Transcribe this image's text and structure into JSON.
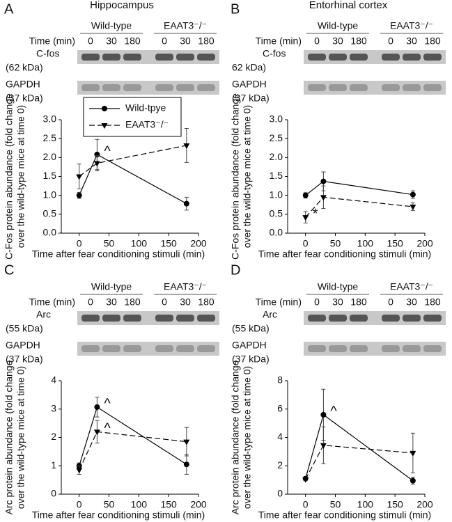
{
  "chart_data": [
    {
      "type": "line",
      "panel": "A",
      "title": "Hippocampus",
      "blot": {
        "time_label": "Time (min)",
        "groups": [
          "Wild-type",
          "EAAT3⁻/⁻"
        ],
        "times": [
          "0",
          "30",
          "180",
          "0",
          "30",
          "180"
        ],
        "rows": [
          {
            "name": "C-fos",
            "size": "(62 kDa)"
          },
          {
            "name": "GAPDH",
            "size": "(37 kDa)"
          }
        ]
      },
      "ylabel": [
        "C-Fos protein abundance (fold change",
        "over the wild-type mice at time 0)"
      ],
      "xlabel": "Time after fear conditioning stimuli (min)",
      "x": [
        0,
        30,
        180
      ],
      "xlim": [
        -30,
        200
      ],
      "xticks": [
        0,
        50,
        100,
        150,
        200
      ],
      "ylim": [
        0,
        3
      ],
      "yticks": [
        {
          "value": 0,
          "label": "0.0"
        },
        {
          "value": 0.5,
          "label": "0.5"
        },
        {
          "value": 1,
          "label": "1.0"
        },
        {
          "value": 1.5,
          "label": "1.5"
        },
        {
          "value": 2,
          "label": "2.0"
        },
        {
          "value": 2.5,
          "label": "2.5"
        },
        {
          "value": 3,
          "label": "3.0"
        }
      ],
      "legend": true,
      "series": [
        {
          "name": "Wild-tpye",
          "color": "#000000",
          "linestyle": "solid",
          "marker": "circle",
          "values": [
            1.0,
            2.08,
            0.78
          ],
          "errors": [
            0.08,
            0.4,
            0.17
          ],
          "annotations": [
            null,
            "^",
            null
          ]
        },
        {
          "name": "EAAT3⁻/⁻",
          "color": "#000000",
          "linestyle": "dashed",
          "marker": "triangle-down",
          "values": [
            1.5,
            1.85,
            2.32
          ],
          "errors": [
            0.33,
            0.2,
            0.45
          ]
        }
      ]
    },
    {
      "type": "line",
      "panel": "B",
      "title": "Entorhinal cortex",
      "blot": {
        "time_label": "Time (min)",
        "groups": [
          "Wild-type",
          "EAAT3⁻/⁻"
        ],
        "times": [
          "0",
          "30",
          "180",
          "0",
          "30",
          "180"
        ],
        "rows": [
          {
            "name": "C-fos",
            "size": "62 kDa)"
          },
          {
            "name": "GAPDH",
            "size": "(37 kDa)"
          }
        ]
      },
      "ylabel": [
        "C-Fos protein abundance (fold change",
        "over the wild-type mice at time 0)"
      ],
      "xlabel": "Time after fear conditioning stimuli (min)",
      "x": [
        0,
        30,
        180
      ],
      "xlim": [
        -30,
        200
      ],
      "xticks": [
        0,
        50,
        100,
        150,
        200
      ],
      "ylim": [
        0,
        3
      ],
      "yticks": [
        {
          "value": 0,
          "label": "0.0"
        },
        {
          "value": 0.5,
          "label": "0.5"
        },
        {
          "value": 1,
          "label": "1.0"
        },
        {
          "value": 1.5,
          "label": "1.5"
        },
        {
          "value": 2,
          "label": "2.0"
        },
        {
          "value": 2.5,
          "label": "2.5"
        },
        {
          "value": 3,
          "label": "3.0"
        }
      ],
      "legend": false,
      "series": [
        {
          "color": "#000000",
          "linestyle": "solid",
          "marker": "circle",
          "values": [
            1.0,
            1.37,
            1.02
          ],
          "errors": [
            0.07,
            0.25,
            0.1
          ]
        },
        {
          "color": "#000000",
          "linestyle": "dashed",
          "marker": "triangle-down",
          "values": [
            0.42,
            0.95,
            0.7
          ],
          "errors": [
            0.15,
            0.3,
            0.1
          ],
          "annotations": [
            "*",
            null,
            null
          ]
        }
      ]
    },
    {
      "type": "line",
      "panel": "C",
      "blot": {
        "time_label": "Time (min)",
        "groups": [
          "Wild-type",
          "EAAT3⁻/⁻"
        ],
        "times": [
          "0",
          "30",
          "180",
          "0",
          "30",
          "180"
        ],
        "rows": [
          {
            "name": "Arc",
            "size": "(55 kDa)"
          },
          {
            "name": "GAPDH",
            "size": "(37 kDa)"
          }
        ]
      },
      "ylabel": [
        "Arc protein abundance (fold change",
        "over the wild-type mice at time 0)"
      ],
      "xlabel": "Time after fear conditioning stimuli (min)",
      "x": [
        0,
        30,
        180
      ],
      "xlim": [
        -30,
        200
      ],
      "xticks": [
        0,
        50,
        100,
        150,
        200
      ],
      "ylim": [
        0,
        4
      ],
      "yticks": [
        0,
        1,
        2,
        3,
        4
      ],
      "legend": false,
      "series": [
        {
          "color": "#000000",
          "linestyle": "solid",
          "marker": "circle",
          "values": [
            1.0,
            3.07,
            1.05
          ],
          "errors": [
            0.1,
            0.35,
            0.35
          ],
          "annotations": [
            null,
            "^",
            null
          ]
        },
        {
          "color": "#000000",
          "linestyle": "dashed",
          "marker": "triangle-down",
          "values": [
            0.85,
            2.2,
            1.85
          ],
          "errors": [
            0.15,
            0.4,
            0.5
          ],
          "annotations": [
            null,
            "^",
            null
          ]
        }
      ]
    },
    {
      "type": "line",
      "panel": "D",
      "blot": {
        "time_label": "Time (min)",
        "groups": [
          "Wild-type",
          "EAAT3⁻/⁻"
        ],
        "times": [
          "0",
          "30",
          "180",
          "0",
          "30",
          "180"
        ],
        "rows": [
          {
            "name": "Arc",
            "size": "(55 kDa)"
          },
          {
            "name": "GAPDH",
            "size": "(37 kDa)"
          }
        ]
      },
      "ylabel": [
        "Arc protein abundance (fold change",
        "over the wild-type mice at time 0)"
      ],
      "xlabel": "Time after fear conditioning stimuli (min)",
      "x": [
        0,
        30,
        180
      ],
      "xlim": [
        -30,
        200
      ],
      "xticks": [
        0,
        50,
        100,
        150,
        200
      ],
      "ylim": [
        0,
        8
      ],
      "yticks": [
        0,
        2,
        4,
        6,
        8
      ],
      "legend": false,
      "series": [
        {
          "color": "#000000",
          "linestyle": "solid",
          "marker": "circle",
          "values": [
            1.1,
            5.6,
            0.95
          ],
          "errors": [
            0.1,
            1.8,
            0.25
          ],
          "annotations": [
            null,
            "^",
            null
          ]
        },
        {
          "color": "#000000",
          "linestyle": "dashed",
          "marker": "triangle-down",
          "values": [
            1.05,
            3.45,
            2.9
          ],
          "errors": [
            0.1,
            1.3,
            1.4
          ]
        }
      ]
    }
  ]
}
